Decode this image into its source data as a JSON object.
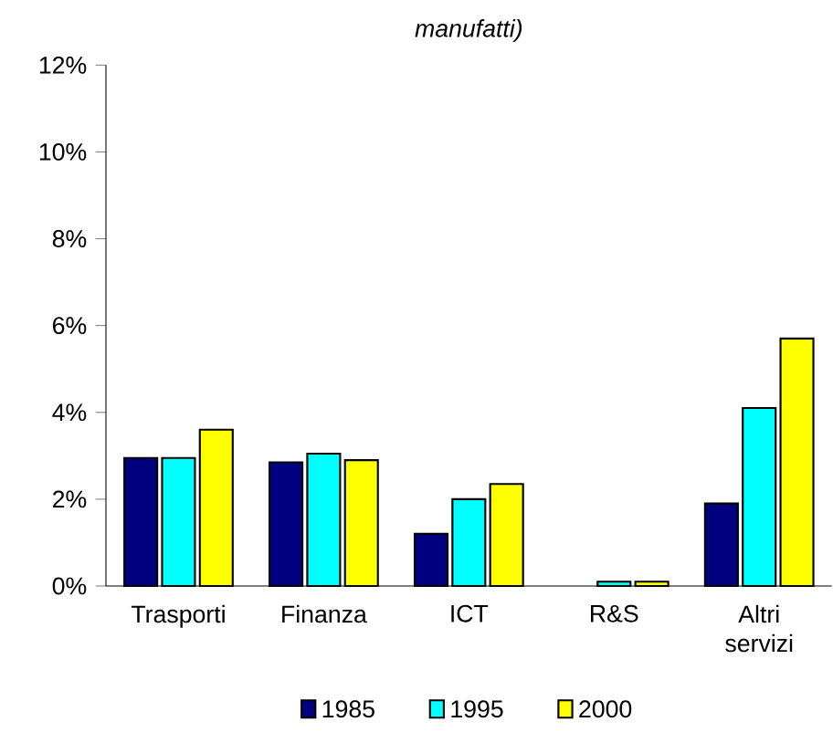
{
  "chart_data": {
    "type": "bar",
    "title": "*manufatti)*",
    "categories": [
      "Trasporti",
      "Finanza",
      "ICT",
      "R&S",
      "Altri servizi"
    ],
    "series": [
      {
        "name": "1985",
        "color": "#000080",
        "values": [
          2.95,
          2.85,
          1.2,
          null,
          1.9
        ]
      },
      {
        "name": "1995",
        "color": "#00ffff",
        "values": [
          2.95,
          3.05,
          2.0,
          0.1,
          4.1
        ]
      },
      {
        "name": "2000",
        "color": "#ffff00",
        "values": [
          3.6,
          2.9,
          2.35,
          0.1,
          5.7
        ]
      }
    ],
    "ylim": [
      0,
      12
    ],
    "yticks": [
      {
        "value": 0,
        "label": "0%"
      },
      {
        "value": 2,
        "label": "2%"
      },
      {
        "value": 4,
        "label": "4%"
      },
      {
        "value": 6,
        "label": "6%"
      },
      {
        "value": 8,
        "label": "8%"
      },
      {
        "value": 10,
        "label": "10%"
      },
      {
        "value": 12,
        "label": "12%"
      }
    ],
    "legend": "bottom"
  }
}
